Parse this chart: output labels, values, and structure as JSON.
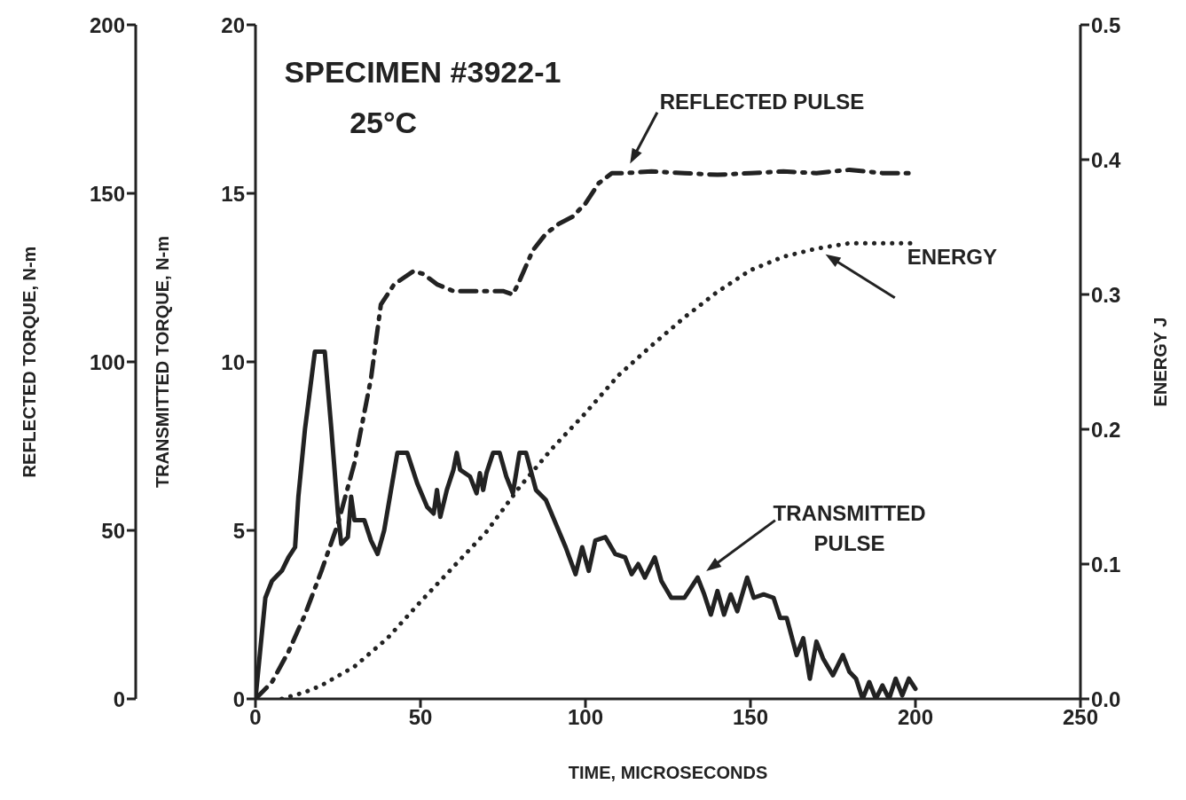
{
  "chart_data": {
    "type": "line",
    "xlabel": "TIME, MICROSECONDS",
    "ylabel": "TRANSMITTED TORQUE, N-m",
    "y2label": "ENERGY J",
    "y3label": "REFLECTED TORQUE, N-m",
    "xlim": [
      0,
      250
    ],
    "xticks": [
      0,
      50,
      100,
      150,
      200,
      250
    ],
    "ylim": [
      0,
      20
    ],
    "yticks": [
      0,
      5,
      10,
      15,
      20
    ],
    "y2lim": [
      0,
      0.5
    ],
    "y2ticks": [
      {
        "value": 0,
        "label": "0.0"
      },
      0.1,
      0.2,
      0.3,
      0.4,
      0.5
    ],
    "y3lim": [
      0,
      200
    ],
    "y3ticks": [
      0,
      50,
      100,
      150,
      200
    ],
    "grid": false,
    "legend": false,
    "marker": "none",
    "annotations": [
      "SPECIMEN #3922-1",
      "25°C"
    ],
    "series": [
      {
        "name": "REFLECTED PULSE",
        "color": "#222222",
        "axis": "y3",
        "line_style": "dashed",
        "x": [
          0,
          5,
          10,
          15,
          20,
          25,
          30,
          35,
          38,
          42,
          45,
          48,
          51,
          55,
          60,
          65,
          70,
          75,
          78,
          80,
          84,
          88,
          92,
          96,
          100,
          104,
          108,
          112,
          120,
          130,
          140,
          150,
          160,
          170,
          180,
          190,
          200
        ],
        "values": [
          0,
          5,
          14,
          25,
          38,
          52,
          70,
          95,
          117,
          123,
          125,
          127,
          126,
          123,
          121,
          121,
          121,
          121,
          120,
          124,
          133,
          138,
          141,
          143,
          147,
          153,
          156,
          156,
          156.5,
          156,
          155.5,
          156,
          156.5,
          156,
          157,
          156,
          156
        ]
      },
      {
        "name": "ENERGY",
        "color": "#222222",
        "axis": "y2",
        "line_style": "dotted",
        "x": [
          8,
          15,
          20,
          30,
          40,
          50,
          60,
          70,
          80,
          90,
          100,
          110,
          120,
          130,
          140,
          150,
          160,
          170,
          175,
          180,
          190,
          200
        ],
        "values": [
          0,
          0.005,
          0.01,
          0.024,
          0.045,
          0.072,
          0.098,
          0.124,
          0.157,
          0.186,
          0.212,
          0.24,
          0.262,
          0.283,
          0.302,
          0.318,
          0.328,
          0.334,
          0.336,
          0.338,
          0.338,
          0.338
        ]
      },
      {
        "name": "TRANSMITTED PULSE",
        "color": "#222222",
        "axis": "y",
        "line_style": "solid",
        "x": [
          0,
          3,
          5,
          8,
          10,
          12,
          13,
          15,
          18,
          21,
          23,
          25,
          26,
          28,
          29,
          30,
          33,
          35,
          37,
          39,
          43,
          46,
          49,
          52,
          54,
          55,
          56,
          58,
          60,
          61,
          62,
          65,
          67,
          68,
          69,
          70,
          72,
          74,
          76,
          78,
          80,
          82,
          85,
          88,
          91,
          94,
          97,
          99,
          101,
          103,
          106,
          109,
          112,
          114,
          116,
          118,
          121,
          123,
          126,
          130,
          134,
          136,
          138,
          140,
          142,
          144,
          146,
          149,
          151,
          154,
          157,
          159,
          161,
          164,
          166,
          168,
          170,
          172,
          175,
          178,
          180,
          182,
          184,
          186,
          188,
          190,
          192,
          194,
          196,
          198,
          200
        ],
        "values": [
          0,
          3,
          3.5,
          3.8,
          4.2,
          4.5,
          6,
          8,
          10.3,
          10.3,
          8,
          5.5,
          4.6,
          4.8,
          6,
          5.3,
          5.3,
          4.7,
          4.3,
          5,
          7.3,
          7.3,
          6.4,
          5.7,
          5.5,
          6.2,
          5.4,
          6.2,
          6.8,
          7.3,
          6.8,
          6.6,
          6.1,
          6.7,
          6.2,
          6.7,
          7.3,
          7.3,
          6.6,
          6.1,
          7.3,
          7.3,
          6.2,
          5.9,
          5.2,
          4.5,
          3.7,
          4.5,
          3.8,
          4.7,
          4.8,
          4.3,
          4.2,
          3.7,
          4,
          3.6,
          4.2,
          3.5,
          3,
          3,
          3.6,
          3.1,
          2.5,
          3.2,
          2.5,
          3.1,
          2.6,
          3.6,
          3,
          3.1,
          3,
          2.4,
          2.4,
          1.3,
          1.8,
          0.6,
          1.7,
          1.2,
          0.7,
          1.3,
          0.8,
          0.6,
          0,
          0.5,
          0,
          0.4,
          0,
          0.6,
          0.1,
          0.6,
          0.3
        ]
      }
    ]
  }
}
